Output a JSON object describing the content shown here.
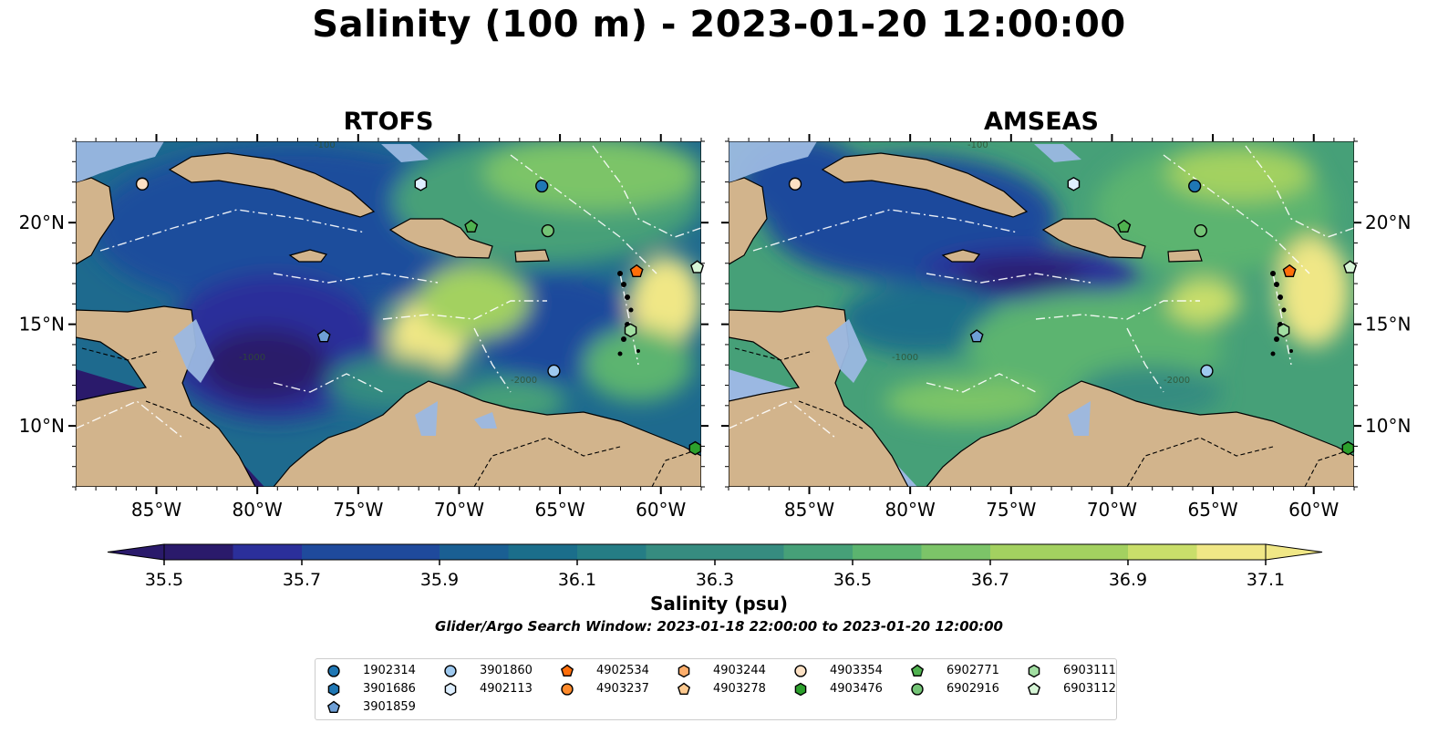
{
  "title": "Salinity (100 m) - 2023-01-20 12:00:00",
  "panels": [
    {
      "title": "RTOFS",
      "model": "RTOFS"
    },
    {
      "title": "AMSEAS",
      "model": "AMSEAS"
    }
  ],
  "map": {
    "lon_range": [
      -89,
      -58
    ],
    "lat_range": [
      7,
      24
    ],
    "x_ticks": [
      "85°W",
      "80°W",
      "75°W",
      "70°W",
      "65°W",
      "60°W"
    ],
    "y_ticks": [
      "10°N",
      "15°N",
      "20°N"
    ],
    "bathymetry_labels": [
      "-100",
      "-1000",
      "-2000"
    ],
    "colors": {
      "land": "#d2b48c",
      "shallow": "#9bb8e2",
      "coast": "#000000"
    }
  },
  "colorbar": {
    "label": "Salinity (psu)",
    "min": 35.5,
    "max": 37.1,
    "tick_labels": [
      "35.5",
      "35.7",
      "35.9",
      "36.1",
      "36.3",
      "36.5",
      "36.7",
      "36.9",
      "37.1"
    ],
    "colors": [
      "#2a1a6b",
      "#2b2f9a",
      "#1f4a9c",
      "#1a5f93",
      "#1b6e8b",
      "#257d85",
      "#368c80",
      "#46a078",
      "#5bb46f",
      "#7cc468",
      "#a3d160",
      "#c9de6a",
      "#f0e786"
    ],
    "extend": "both"
  },
  "search_window": "Glider/Argo Search Window: 2023-01-18 22:00:00 to 2023-01-20 12:00:00",
  "legend": [
    {
      "label": "1902314",
      "marker": "circle",
      "color": "#1f77b4"
    },
    {
      "label": "3901686",
      "marker": "hexagon",
      "color": "#1f77b4"
    },
    {
      "label": "3901859",
      "marker": "pentagon",
      "color": "#6e9fd6"
    },
    {
      "label": "3901860",
      "marker": "circle",
      "color": "#9ec9ef"
    },
    {
      "label": "4902113",
      "marker": "hexagon",
      "color": "#deefff"
    },
    {
      "label": "4902534",
      "marker": "pentagon",
      "color": "#ff6e0a"
    },
    {
      "label": "4903237",
      "marker": "circle",
      "color": "#ff8a2b"
    },
    {
      "label": "4903244",
      "marker": "hexagon",
      "color": "#fdae6b"
    },
    {
      "label": "4903278",
      "marker": "pentagon",
      "color": "#fdc98f"
    },
    {
      "label": "4903354",
      "marker": "circle",
      "color": "#fde1c4"
    },
    {
      "label": "4903476",
      "marker": "hexagon",
      "color": "#2ca02c"
    },
    {
      "label": "6902771",
      "marker": "pentagon",
      "color": "#4fb24f"
    },
    {
      "label": "6902916",
      "marker": "circle",
      "color": "#74c476"
    },
    {
      "label": "6903111",
      "marker": "hexagon",
      "color": "#a1dea1"
    },
    {
      "label": "6903112",
      "marker": "pentagon",
      "color": "#d6f5d6"
    }
  ],
  "observations": [
    {
      "id": "4903354",
      "lon": -85.7,
      "lat": 21.9
    },
    {
      "id": "4902113",
      "lon": -71.9,
      "lat": 21.9
    },
    {
      "id": "1902314",
      "lon": -65.9,
      "lat": 21.8
    },
    {
      "id": "6902771",
      "lon": -69.4,
      "lat": 19.8
    },
    {
      "id": "6902916",
      "lon": -65.6,
      "lat": 19.6
    },
    {
      "id": "6903112",
      "lon": -58.2,
      "lat": 17.8
    },
    {
      "id": "4902534",
      "lon": -61.2,
      "lat": 17.6
    },
    {
      "id": "6903111",
      "lon": -61.5,
      "lat": 14.7
    },
    {
      "id": "3901859",
      "lon": -76.7,
      "lat": 14.4
    },
    {
      "id": "3901860",
      "lon": -65.3,
      "lat": 12.7
    },
    {
      "id": "4903476",
      "lon": -58.3,
      "lat": 8.9
    }
  ]
}
